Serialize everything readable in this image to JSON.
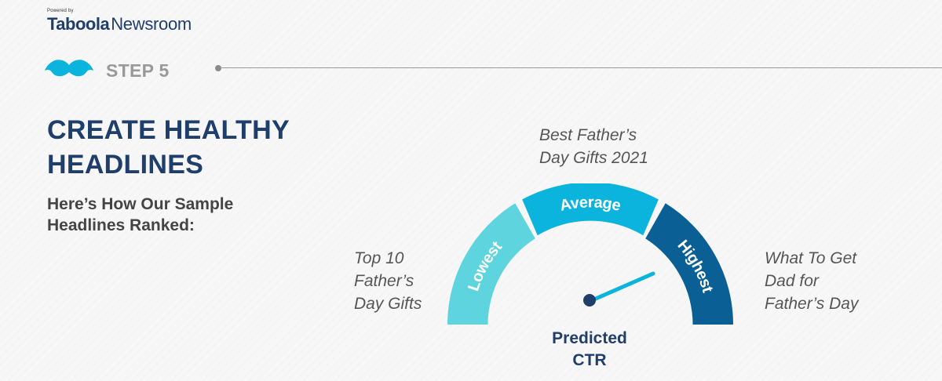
{
  "brand": {
    "powered_by": "Powered by",
    "name_primary": "Taboola",
    "name_secondary": "Newsroom"
  },
  "step": {
    "label": "STEP 5",
    "icon": "mustache-icon"
  },
  "title_lines": [
    "CREATE HEALTHY",
    "HEADLINES"
  ],
  "subtitle_lines": [
    "Here’s How Our Sample",
    "Headlines Ranked:"
  ],
  "headlines": {
    "lowest": [
      "Top 10",
      "Father’s",
      "Day Gifts"
    ],
    "average": [
      "Best Father’s",
      "Day Gifts 2021"
    ],
    "highest": [
      "What To Get",
      "Dad for",
      "Father’s Day"
    ]
  },
  "gauge": {
    "segments": [
      {
        "label": "Lowest",
        "color": "#5ed5de"
      },
      {
        "label": "Average",
        "color": "#0bb4dc"
      },
      {
        "label": "Highest",
        "color": "#0a5f95"
      }
    ],
    "needle_color": "#0bb4dc",
    "hub_color": "#1f3e6b"
  },
  "ctr_label_lines": [
    "Predicted",
    "CTR"
  ],
  "colors": {
    "navy": "#1f3e6b",
    "gray_text": "#444444"
  }
}
